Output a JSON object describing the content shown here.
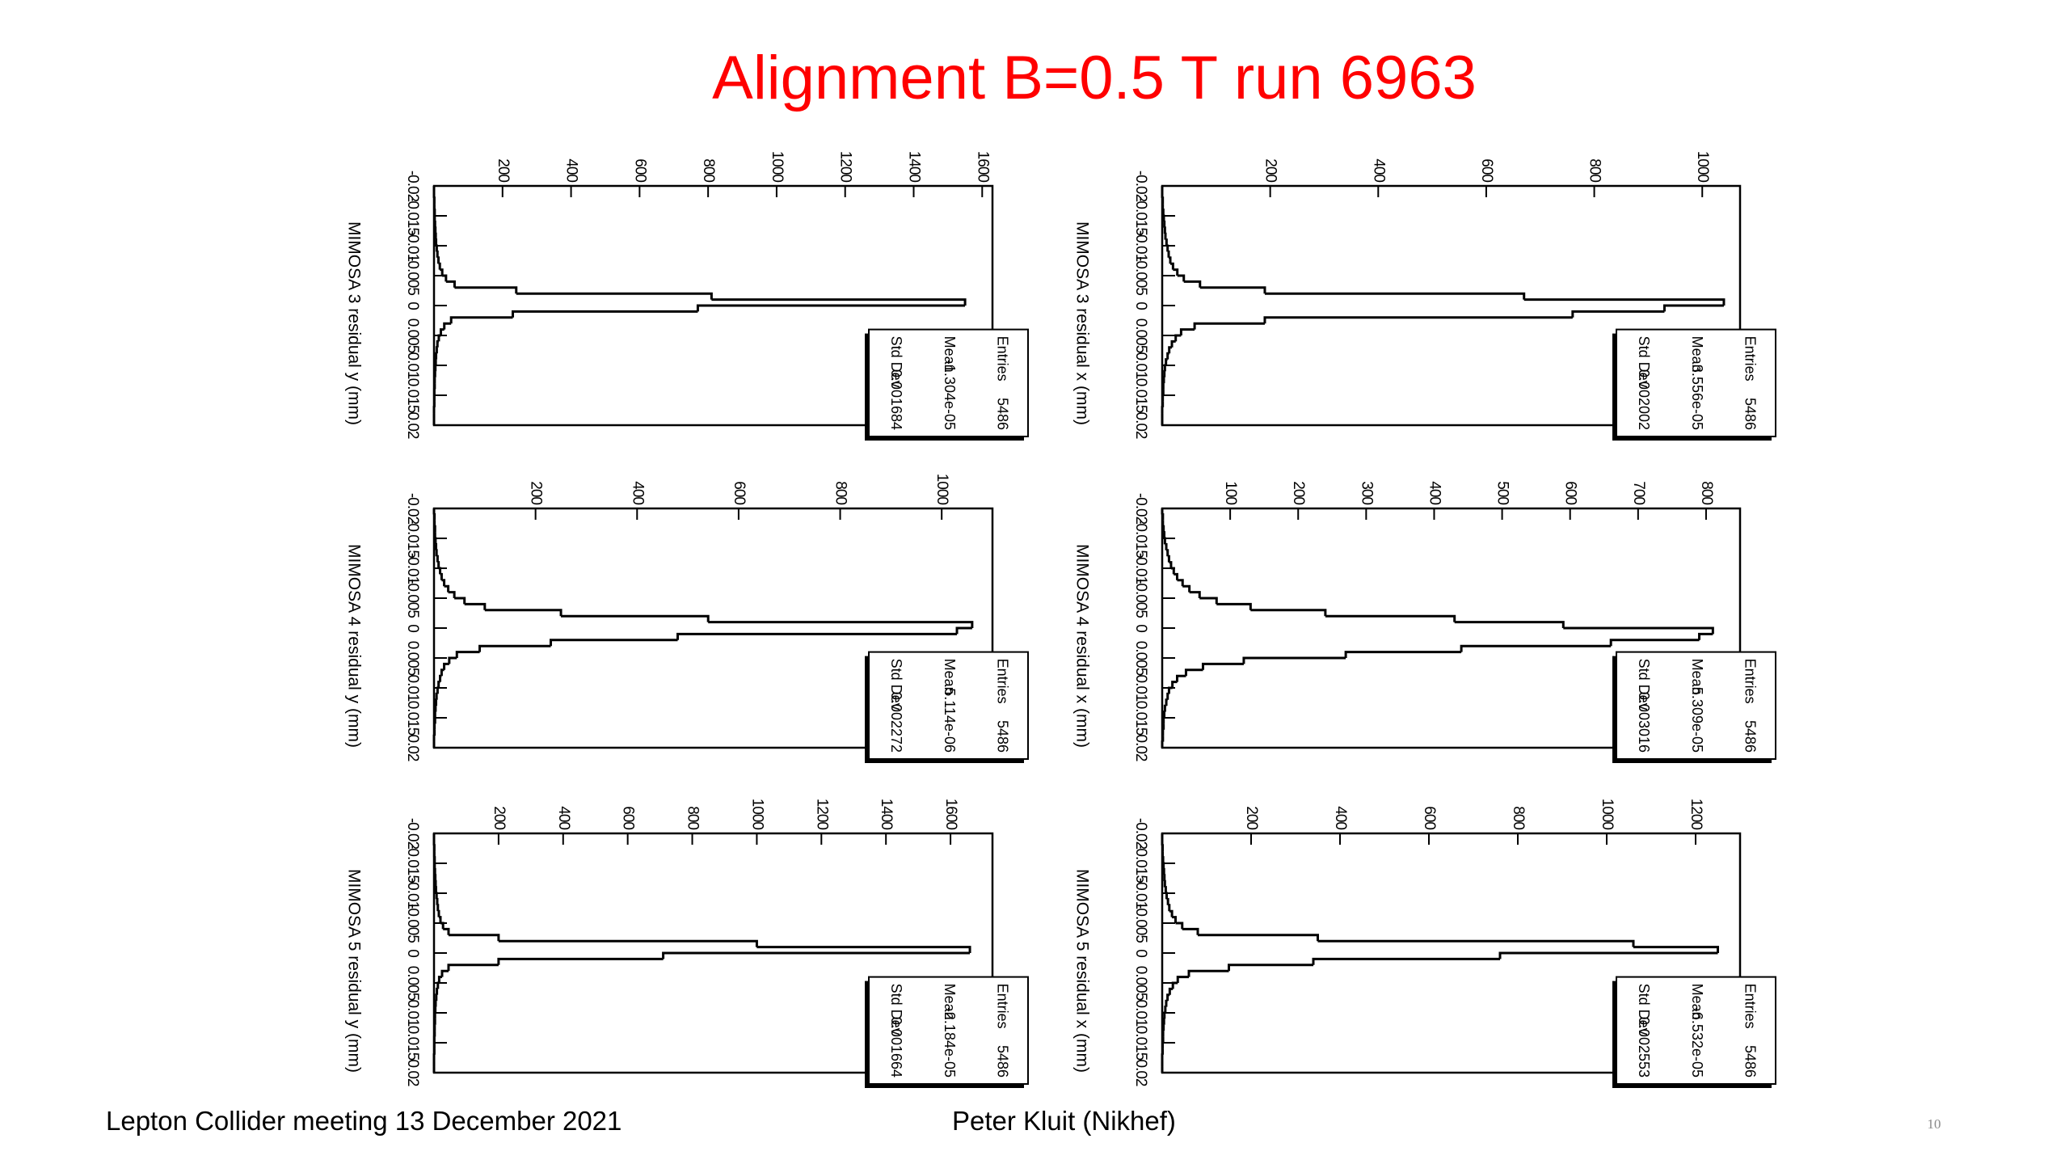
{
  "title": "Alignment B=0.5 T run 6963",
  "footer": {
    "left": "Lepton Collider meeting 13 December 2021",
    "center": "Peter Kluit (Nikhef)",
    "page": "10"
  },
  "chart_data": [
    {
      "type": "histogram",
      "x_label": "MIMOSA 3 residual y (mm)",
      "color": "#000000",
      "bins": [
        -0.02,
        -0.019,
        -0.018,
        -0.017,
        -0.016,
        -0.015,
        -0.014,
        -0.013,
        -0.012,
        -0.011,
        -0.01,
        -0.009,
        -0.008,
        -0.007,
        -0.006,
        -0.005,
        -0.004,
        -0.003,
        -0.002,
        -0.001,
        0,
        0.001,
        0.002,
        0.003,
        0.004,
        0.005,
        0.006,
        0.007,
        0.008,
        0.009,
        0.01,
        0.011,
        0.012,
        0.013,
        0.014,
        0.015,
        0.016,
        0.017,
        0.018,
        0.019,
        0.02
      ],
      "values": [
        0,
        0,
        1,
        1,
        2,
        2,
        3,
        4,
        5,
        6,
        8,
        10,
        13,
        17,
        24,
        35,
        60,
        240,
        810,
        1550,
        770,
        230,
        50,
        30,
        20,
        14,
        10,
        8,
        6,
        5,
        4,
        3,
        2,
        2,
        1,
        1,
        1,
        0,
        0,
        0
      ],
      "xlim": [
        -0.02,
        0.02
      ],
      "xticks": [
        -0.02,
        -0.015,
        -0.01,
        -0.005,
        0,
        0.005,
        0.01,
        0.015,
        0.02
      ],
      "ylim": [
        0,
        1630
      ],
      "yticks": [
        200,
        400,
        600,
        800,
        1000,
        1200,
        1400,
        1600
      ],
      "stats": [
        {
          "label": "Entries",
          "value": "5486"
        },
        {
          "label": "Mean",
          "value": "-1.304e-05"
        },
        {
          "label": "Std Dev",
          "value": "0.001684"
        }
      ]
    },
    {
      "type": "histogram",
      "x_label": "MIMOSA 3 residual x (mm)",
      "color": "#000000",
      "bins": [
        -0.02,
        -0.019,
        -0.018,
        -0.017,
        -0.016,
        -0.015,
        -0.014,
        -0.013,
        -0.012,
        -0.011,
        -0.01,
        -0.009,
        -0.008,
        -0.007,
        -0.006,
        -0.005,
        -0.004,
        -0.003,
        -0.002,
        -0.001,
        0,
        0.001,
        0.002,
        0.003,
        0.004,
        0.005,
        0.006,
        0.007,
        0.008,
        0.009,
        0.01,
        0.011,
        0.012,
        0.013,
        0.014,
        0.015,
        0.016,
        0.017,
        0.018,
        0.019,
        0.02
      ],
      "values": [
        0,
        0,
        1,
        1,
        2,
        3,
        4,
        5,
        6,
        8,
        10,
        12,
        15,
        20,
        28,
        40,
        70,
        190,
        670,
        1040,
        930,
        760,
        190,
        60,
        35,
        25,
        18,
        13,
        10,
        7,
        5,
        4,
        3,
        2,
        2,
        1,
        1,
        0,
        0,
        0
      ],
      "xlim": [
        -0.02,
        0.02
      ],
      "xticks": [
        -0.02,
        -0.015,
        -0.01,
        -0.005,
        0,
        0.005,
        0.01,
        0.015,
        0.02
      ],
      "ylim": [
        0,
        1070
      ],
      "yticks": [
        200,
        400,
        600,
        800,
        1000
      ],
      "stats": [
        {
          "label": "Entries",
          "value": "5486"
        },
        {
          "label": "Mean",
          "value": "3.556e-05"
        },
        {
          "label": "Std Dev",
          "value": "0.002002"
        }
      ]
    },
    {
      "type": "histogram",
      "x_label": "MIMOSA 4 residual y (mm)",
      "color": "#000000",
      "bins": [
        -0.02,
        -0.019,
        -0.018,
        -0.017,
        -0.016,
        -0.015,
        -0.014,
        -0.013,
        -0.012,
        -0.011,
        -0.01,
        -0.009,
        -0.008,
        -0.007,
        -0.006,
        -0.005,
        -0.004,
        -0.003,
        -0.002,
        -0.001,
        0,
        0.001,
        0.002,
        0.003,
        0.004,
        0.005,
        0.006,
        0.007,
        0.008,
        0.009,
        0.01,
        0.011,
        0.012,
        0.013,
        0.014,
        0.015,
        0.016,
        0.017,
        0.018,
        0.019,
        0.02
      ],
      "values": [
        0,
        1,
        1,
        2,
        2,
        3,
        4,
        5,
        7,
        9,
        12,
        15,
        20,
        28,
        40,
        60,
        100,
        250,
        540,
        1060,
        1030,
        480,
        230,
        90,
        45,
        30,
        20,
        15,
        12,
        9,
        7,
        5,
        4,
        3,
        2,
        2,
        1,
        1,
        0,
        0
      ],
      "xlim": [
        -0.02,
        0.02
      ],
      "xticks": [
        -0.02,
        -0.015,
        -0.01,
        -0.005,
        0,
        0.005,
        0.01,
        0.015,
        0.02
      ],
      "ylim": [
        0,
        1100
      ],
      "yticks": [
        200,
        400,
        600,
        800,
        1000
      ],
      "stats": [
        {
          "label": "Entries",
          "value": "5486"
        },
        {
          "label": "Mean",
          "value": "5.114e-06"
        },
        {
          "label": "Std Dev",
          "value": "0.002272"
        }
      ]
    },
    {
      "type": "histogram",
      "x_label": "MIMOSA 4 residual x (mm)",
      "color": "#000000",
      "bins": [
        -0.02,
        -0.019,
        -0.018,
        -0.017,
        -0.016,
        -0.015,
        -0.014,
        -0.013,
        -0.012,
        -0.011,
        -0.01,
        -0.009,
        -0.008,
        -0.007,
        -0.006,
        -0.005,
        -0.004,
        -0.003,
        -0.002,
        -0.001,
        0,
        0.001,
        0.002,
        0.003,
        0.004,
        0.005,
        0.006,
        0.007,
        0.008,
        0.009,
        0.01,
        0.011,
        0.012,
        0.013,
        0.014,
        0.015,
        0.016,
        0.017,
        0.018,
        0.019,
        0.02
      ],
      "values": [
        0,
        1,
        1,
        2,
        3,
        4,
        6,
        8,
        10,
        13,
        17,
        22,
        30,
        40,
        55,
        80,
        130,
        240,
        430,
        590,
        810,
        790,
        660,
        440,
        270,
        120,
        60,
        35,
        22,
        15,
        10,
        8,
        6,
        4,
        3,
        2,
        2,
        1,
        1,
        0
      ],
      "xlim": [
        -0.02,
        0.02
      ],
      "xticks": [
        -0.02,
        -0.015,
        -0.01,
        -0.005,
        0,
        0.005,
        0.01,
        0.015,
        0.02
      ],
      "ylim": [
        0,
        850
      ],
      "yticks": [
        100,
        200,
        300,
        400,
        500,
        600,
        700,
        800
      ],
      "stats": [
        {
          "label": "Entries",
          "value": "5486"
        },
        {
          "label": "Mean",
          "value": "5.309e-05"
        },
        {
          "label": "Std Dev",
          "value": "0.003016"
        }
      ]
    },
    {
      "type": "histogram",
      "x_label": "MIMOSA 5 residual y (mm)",
      "color": "#000000",
      "bins": [
        -0.02,
        -0.019,
        -0.018,
        -0.017,
        -0.016,
        -0.015,
        -0.014,
        -0.013,
        -0.012,
        -0.011,
        -0.01,
        -0.009,
        -0.008,
        -0.007,
        -0.006,
        -0.005,
        -0.004,
        -0.003,
        -0.002,
        -0.001,
        0,
        0.001,
        0.002,
        0.003,
        0.004,
        0.005,
        0.006,
        0.007,
        0.008,
        0.009,
        0.01,
        0.011,
        0.012,
        0.013,
        0.014,
        0.015,
        0.016,
        0.017,
        0.018,
        0.019,
        0.02
      ],
      "values": [
        0,
        0,
        1,
        1,
        2,
        2,
        3,
        4,
        5,
        6,
        8,
        10,
        12,
        15,
        20,
        28,
        45,
        200,
        1000,
        1660,
        710,
        200,
        45,
        25,
        16,
        12,
        9,
        7,
        5,
        4,
        3,
        3,
        2,
        2,
        1,
        1,
        1,
        0,
        0,
        0
      ],
      "xlim": [
        -0.02,
        0.02
      ],
      "xticks": [
        -0.02,
        -0.015,
        -0.01,
        -0.005,
        0,
        0.005,
        0.01,
        0.015,
        0.02
      ],
      "ylim": [
        0,
        1730
      ],
      "yticks": [
        200,
        400,
        600,
        800,
        1000,
        1200,
        1400,
        1600
      ],
      "stats": [
        {
          "label": "Entries",
          "value": "5486"
        },
        {
          "label": "Mean",
          "value": "-2.184e-05"
        },
        {
          "label": "Std Dev",
          "value": "0.001664"
        }
      ]
    },
    {
      "type": "histogram",
      "x_label": "MIMOSA 5 residual x (mm)",
      "color": "#000000",
      "bins": [
        -0.02,
        -0.019,
        -0.018,
        -0.017,
        -0.016,
        -0.015,
        -0.014,
        -0.013,
        -0.012,
        -0.011,
        -0.01,
        -0.009,
        -0.008,
        -0.007,
        -0.006,
        -0.005,
        -0.004,
        -0.003,
        -0.002,
        -0.001,
        0,
        0.001,
        0.002,
        0.003,
        0.004,
        0.005,
        0.006,
        0.007,
        0.008,
        0.009,
        0.01,
        0.011,
        0.012,
        0.013,
        0.014,
        0.015,
        0.016,
        0.017,
        0.018,
        0.019,
        0.02
      ],
      "values": [
        0,
        0,
        1,
        1,
        2,
        3,
        4,
        5,
        6,
        8,
        10,
        13,
        16,
        22,
        30,
        45,
        80,
        350,
        1060,
        1250,
        760,
        340,
        150,
        60,
        35,
        24,
        17,
        12,
        9,
        7,
        5,
        4,
        3,
        2,
        2,
        1,
        1,
        0,
        0,
        0
      ],
      "xlim": [
        -0.02,
        0.02
      ],
      "xticks": [
        -0.02,
        -0.015,
        -0.01,
        -0.005,
        0,
        0.005,
        0.01,
        0.015,
        0.02
      ],
      "ylim": [
        0,
        1300
      ],
      "yticks": [
        200,
        400,
        600,
        800,
        1000,
        1200
      ],
      "stats": [
        {
          "label": "Entries",
          "value": "5486"
        },
        {
          "label": "Mean",
          "value": "-6.532e-05"
        },
        {
          "label": "Std Dev",
          "value": "0.002553"
        }
      ]
    }
  ]
}
